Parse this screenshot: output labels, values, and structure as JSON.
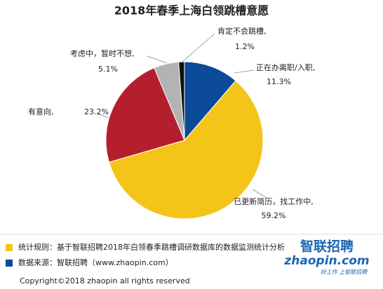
{
  "chart_data": {
    "type": "pie",
    "title": "2018年春季上海白领跳槽意愿",
    "categories": [
      "正在办离职/入职,",
      "已更新简历，找工作中,",
      "有意向,",
      "考虑中，暂时不想,",
      "肯定不会跳槽,"
    ],
    "values": [
      11.3,
      59.2,
      23.2,
      5.1,
      1.2
    ],
    "value_labels": [
      "11.3%",
      "59.2%",
      "23.2%",
      "5.1%",
      "1.2%"
    ],
    "colors": [
      "#0b4a97",
      "#f4c518",
      "#b41f2d",
      "#b3b3b3",
      "#111111"
    ]
  },
  "notes": [
    {
      "text": "统计规则：基于智联招聘2018年白领春季跳槽调研数据库的数据监测统计分析",
      "color": "#f4c518"
    },
    {
      "text": "数据来源：智联招聘（www.zhaopin.com）",
      "color": "#0b4a97"
    }
  ],
  "logo": {
    "name": "智联招聘",
    "site": "zhaopin.com",
    "slogan": "好工作 上智联招聘"
  },
  "copyright": "Copyright©2018 zhaopin all rights reserved"
}
